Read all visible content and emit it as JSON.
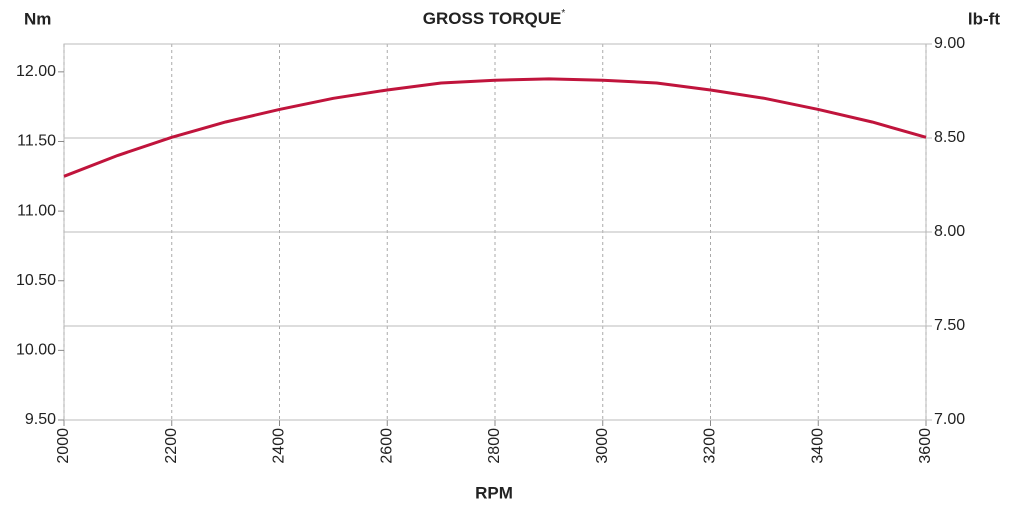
{
  "chart_data": {
    "type": "line",
    "title": "GROSS TORQUE",
    "title_superscript": "*",
    "y_label": "Nm",
    "y2_label": "lb-ft",
    "x_label": "RPM",
    "x": [
      2000,
      2100,
      2200,
      2300,
      2400,
      2500,
      2600,
      2700,
      2800,
      2900,
      3000,
      3100,
      3200,
      3300,
      3400,
      3500,
      3600
    ],
    "series": [
      {
        "name": "Gross torque",
        "color": "#c0143c",
        "values": [
          11.25,
          11.4,
          11.53,
          11.64,
          11.73,
          11.81,
          11.87,
          11.92,
          11.94,
          11.95,
          11.94,
          11.92,
          11.87,
          11.81,
          11.73,
          11.64,
          11.53
        ]
      }
    ],
    "xlim": [
      2000,
      3600
    ],
    "xticks": [
      2000,
      2200,
      2400,
      2600,
      2800,
      3000,
      3200,
      3400,
      3600
    ],
    "ylim": [
      9.5,
      12.2
    ],
    "yticks": [
      {
        "value": 9.5,
        "label": "9.50"
      },
      {
        "value": 10,
        "label": "10.00"
      },
      {
        "value": 10.5,
        "label": "10.50"
      },
      {
        "value": 11,
        "label": "11.00"
      },
      {
        "value": 11.5,
        "label": "11.50"
      },
      {
        "value": 12,
        "label": "12.00"
      }
    ],
    "y2lim": [
      7,
      9
    ],
    "y2ticks": [
      {
        "value": 7,
        "label": "7.00"
      },
      {
        "value": 7.5,
        "label": "7.50"
      },
      {
        "value": 8,
        "label": "8.00"
      },
      {
        "value": 8.5,
        "label": "8.50"
      },
      {
        "value": 9,
        "label": "9.00"
      }
    ],
    "grid": true
  }
}
